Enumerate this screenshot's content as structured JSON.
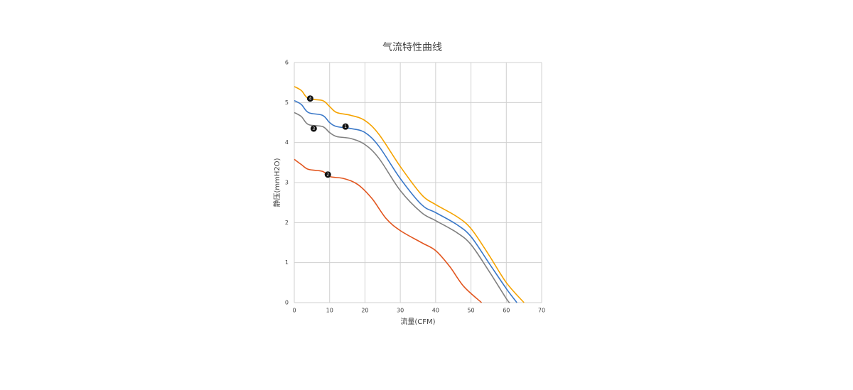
{
  "chart_data": {
    "type": "line",
    "title": "气流特性曲线",
    "x_label": "流量(CFM)",
    "y_label": "静压(mmH2O)",
    "xlim": [
      0,
      70
    ],
    "ylim": [
      0,
      6
    ],
    "xticks": [
      0,
      10,
      20,
      30,
      40,
      50,
      60,
      70
    ],
    "yticks": [
      0,
      1,
      2,
      3,
      4,
      5,
      6
    ],
    "grid": true,
    "series": [
      {
        "color": "#f5a300",
        "x": [
          0,
          2,
          4,
          8,
          10,
          12,
          16,
          20,
          24,
          30,
          36,
          40,
          46,
          50,
          55,
          60,
          65
        ],
        "values": [
          5.4,
          5.3,
          5.1,
          5.05,
          4.9,
          4.75,
          4.68,
          4.55,
          4.2,
          3.4,
          2.7,
          2.45,
          2.15,
          1.85,
          1.2,
          0.5,
          0
        ],
        "marker": {
          "x": 4.5,
          "y": 5.1,
          "label": "4"
        }
      },
      {
        "color": "#3a78c8",
        "x": [
          0,
          2,
          4,
          8,
          10,
          12,
          16,
          20,
          24,
          30,
          36,
          40,
          46,
          50,
          55,
          60,
          63
        ],
        "values": [
          5.05,
          4.95,
          4.75,
          4.68,
          4.5,
          4.4,
          4.35,
          4.25,
          3.9,
          3.1,
          2.45,
          2.25,
          1.95,
          1.65,
          1.0,
          0.35,
          0
        ],
        "marker": {
          "x": 14.5,
          "y": 4.4,
          "label": "1"
        }
      },
      {
        "color": "#808080",
        "x": [
          0,
          2,
          4,
          8,
          10,
          12,
          16,
          20,
          24,
          30,
          36,
          40,
          46,
          50,
          55,
          60,
          61
        ],
        "values": [
          4.75,
          4.65,
          4.45,
          4.4,
          4.25,
          4.15,
          4.1,
          3.95,
          3.6,
          2.8,
          2.25,
          2.05,
          1.75,
          1.45,
          0.8,
          0.1,
          0
        ],
        "marker": {
          "x": 5.5,
          "y": 4.35,
          "label": "3"
        }
      },
      {
        "color": "#e2561f",
        "x": [
          0,
          2,
          4,
          8,
          10,
          14,
          18,
          22,
          26,
          30,
          36,
          40,
          44,
          48,
          53
        ],
        "values": [
          3.58,
          3.45,
          3.33,
          3.28,
          3.15,
          3.1,
          2.95,
          2.6,
          2.1,
          1.8,
          1.5,
          1.3,
          0.9,
          0.4,
          0
        ],
        "marker": {
          "x": 9.5,
          "y": 3.2,
          "label": "2"
        }
      }
    ]
  }
}
